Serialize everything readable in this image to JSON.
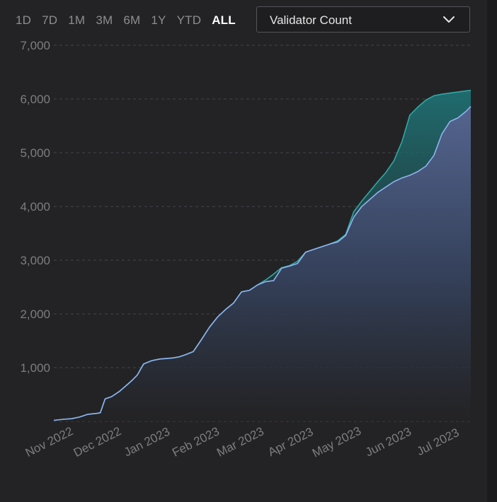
{
  "time_ranges": [
    {
      "label": "1D",
      "active": false
    },
    {
      "label": "7D",
      "active": false
    },
    {
      "label": "1M",
      "active": false
    },
    {
      "label": "3M",
      "active": false
    },
    {
      "label": "6M",
      "active": false
    },
    {
      "label": "1Y",
      "active": false
    },
    {
      "label": "YTD",
      "active": false
    },
    {
      "label": "ALL",
      "active": true
    }
  ],
  "metric_select": {
    "selected": "Validator Count",
    "icon": "chevron-down-icon"
  },
  "colors": {
    "series_teal": "#2fa9a6",
    "series_blue": "#8fb3f0",
    "grid": "#45454a",
    "tick_text": "#7d7d82"
  },
  "chart_data": {
    "type": "area",
    "title": "",
    "xlabel": "",
    "ylabel": "",
    "ylim": [
      0,
      7000
    ],
    "yticks": [
      1000,
      2000,
      3000,
      4000,
      5000,
      6000,
      7000
    ],
    "ytick_labels": [
      "1,000",
      "2,000",
      "3,000",
      "4,000",
      "5,000",
      "6,000",
      "7,000"
    ],
    "x_tick_labels": [
      "Nov 2022",
      "Dec 2022",
      "Jan 2023",
      "Feb 2023",
      "Mar 2023",
      "Apr 2023",
      "May 2023",
      "Jun 2023",
      "Jul 2023"
    ],
    "grid": true,
    "legend": "none",
    "x": [
      "2022-10-30",
      "2022-11-05",
      "2022-11-10",
      "2022-11-15",
      "2022-11-20",
      "2022-11-26",
      "2022-11-28",
      "2022-12-01",
      "2022-12-05",
      "2022-12-10",
      "2022-12-15",
      "2022-12-18",
      "2022-12-21",
      "2022-12-25",
      "2022-12-30",
      "2023-01-04",
      "2023-01-08",
      "2023-01-12",
      "2023-01-16",
      "2023-01-20",
      "2023-01-25",
      "2023-01-30",
      "2023-02-04",
      "2023-02-09",
      "2023-02-14",
      "2023-02-19",
      "2023-02-24",
      "2023-03-01",
      "2023-03-06",
      "2023-03-11",
      "2023-03-16",
      "2023-03-21",
      "2023-03-26",
      "2023-03-31",
      "2023-04-05",
      "2023-04-10",
      "2023-04-15",
      "2023-04-20",
      "2023-04-25",
      "2023-04-30",
      "2023-05-05",
      "2023-05-10",
      "2023-05-15",
      "2023-05-20",
      "2023-05-25",
      "2023-05-30",
      "2023-06-04",
      "2023-06-09",
      "2023-06-14",
      "2023-06-19",
      "2023-06-24",
      "2023-06-29",
      "2023-07-04",
      "2023-07-09",
      "2023-07-14",
      "2023-07-17"
    ],
    "series": [
      {
        "values": [
          20,
          40,
          50,
          80,
          130,
          150,
          160,
          420,
          460,
          560,
          690,
          770,
          860,
          1070,
          1130,
          1160,
          1170,
          1180,
          1200,
          1240,
          1300,
          1520,
          1750,
          1940,
          2080,
          2200,
          2410,
          2440,
          2540,
          2630,
          2740,
          2860,
          2900,
          2980,
          3150,
          3200,
          3250,
          3300,
          3360,
          3480,
          3900,
          4100,
          4280,
          4460,
          4630,
          4850,
          5200,
          5700,
          5850,
          5980,
          6060,
          6090,
          6110,
          6130,
          6150,
          6160
        ]
      },
      {
        "values": [
          20,
          40,
          50,
          80,
          130,
          150,
          160,
          420,
          460,
          560,
          690,
          770,
          860,
          1070,
          1130,
          1160,
          1170,
          1180,
          1200,
          1240,
          1300,
          1520,
          1750,
          1940,
          2080,
          2200,
          2410,
          2440,
          2540,
          2600,
          2620,
          2850,
          2890,
          2940,
          3150,
          3200,
          3250,
          3300,
          3340,
          3460,
          3800,
          4000,
          4130,
          4260,
          4360,
          4460,
          4530,
          4580,
          4650,
          4750,
          4950,
          5350,
          5580,
          5650,
          5770,
          5860
        ]
      }
    ]
  }
}
